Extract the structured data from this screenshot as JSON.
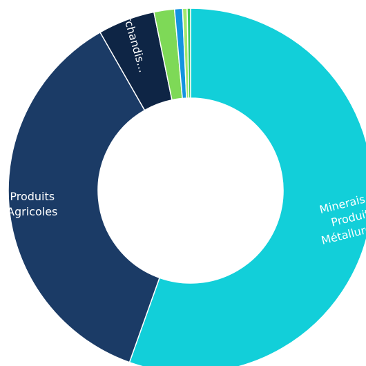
{
  "chart_data": {
    "type": "pie",
    "subtype": "donut",
    "title": "",
    "legend": "none",
    "slices": [
      {
        "label": "Minerais et Produits Métallurgiques",
        "display_lines": [
          "Minerais et",
          "Produits",
          "Métallurgiq..."
        ],
        "value": 55.0,
        "color": "#12cfd9"
      },
      {
        "label": "Produits Agricoles",
        "display_lines": [
          "Produits",
          "Agricoles"
        ],
        "value": 36.0,
        "color": "#1b3b66"
      },
      {
        "label": "Marchandises",
        "display_lines": [
          "Marchandis..."
        ],
        "value": 5.0,
        "color": "#0e2545"
      },
      {
        "label": "",
        "display_lines": [],
        "value": 1.8,
        "color": "#7ed957"
      },
      {
        "label": "",
        "display_lines": [],
        "value": 0.7,
        "color": "#1394e0"
      },
      {
        "label": "",
        "display_lines": [],
        "value": 0.4,
        "color": "#a3e86c"
      },
      {
        "label": "",
        "display_lines": [],
        "value": 0.3,
        "color": "#3cc85a"
      }
    ]
  }
}
